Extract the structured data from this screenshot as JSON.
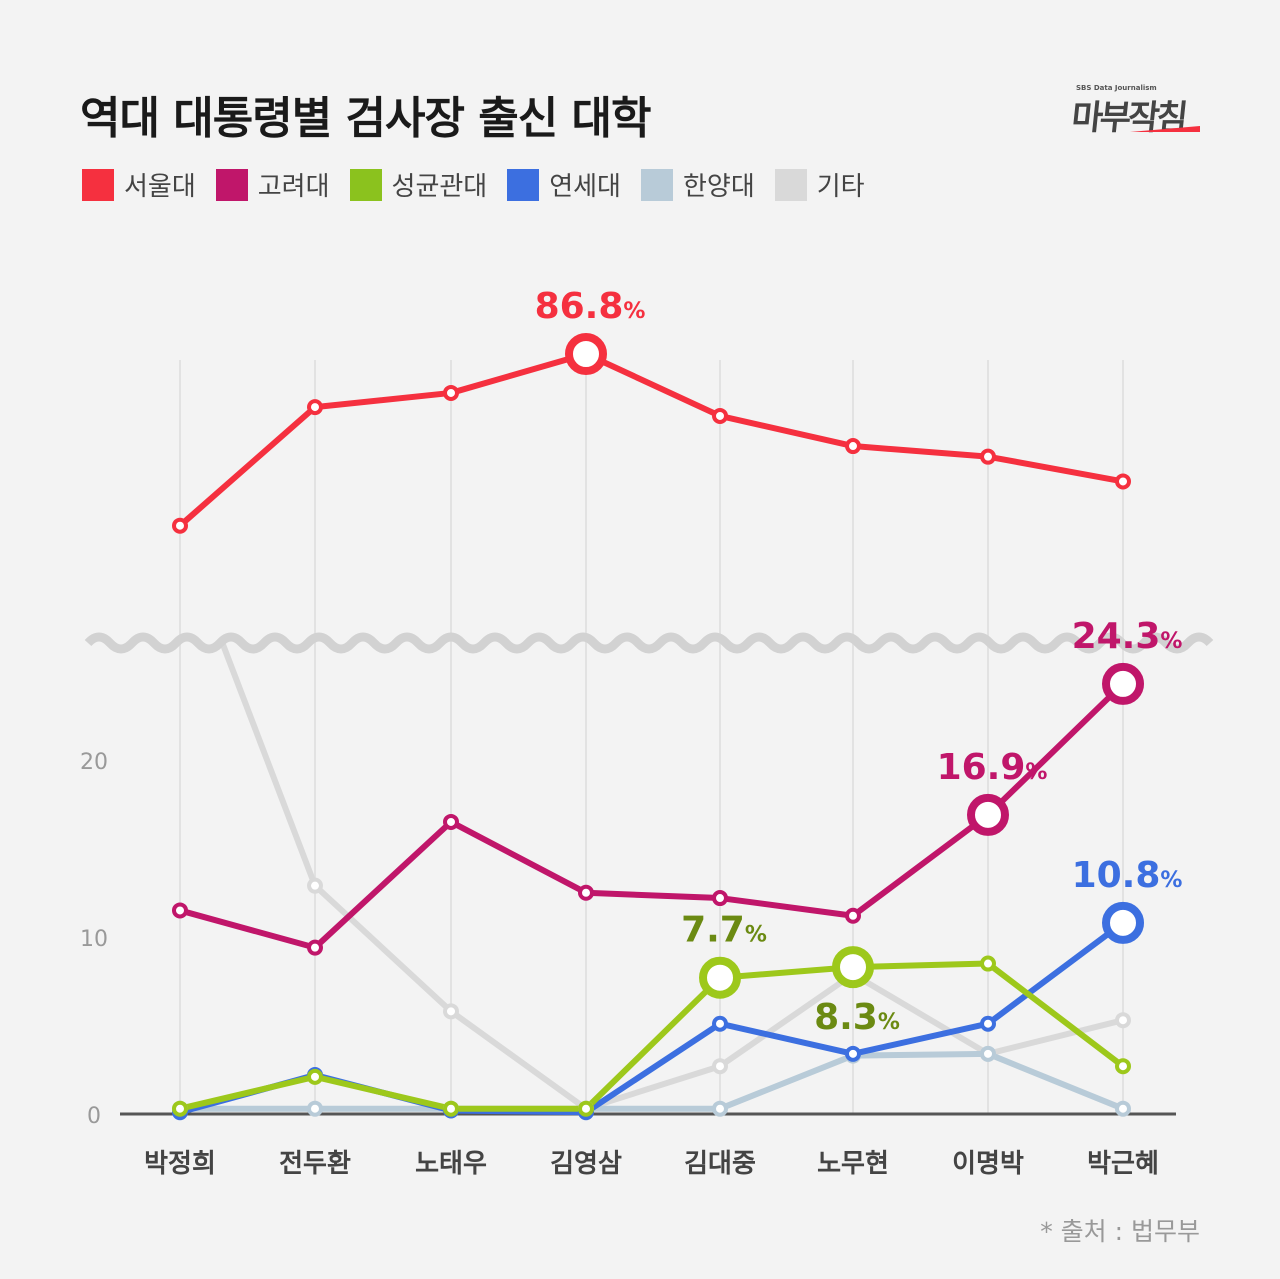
{
  "title": "역대 대통령별 검사장 출신 대학",
  "logo": {
    "small": "SBS Data Journalism",
    "big": "마부작침"
  },
  "source": "* 출처 : 법무부",
  "chart_data": {
    "type": "line",
    "title": "역대 대통령별 검사장 출신 대학",
    "categories": [
      "박정희",
      "전두환",
      "노태우",
      "김영삼",
      "김대중",
      "노무현",
      "이명박",
      "박근혜"
    ],
    "y_ticks": [
      "0",
      "10",
      "20"
    ],
    "ylim_lower": [
      0,
      25
    ],
    "axis_break": true,
    "grid": "vertical",
    "legend_position": "top-left",
    "unit": "%",
    "series": [
      {
        "name": "기타",
        "color": "#d9d9d9",
        "values": [
          null,
          12.9,
          5.8,
          0.3,
          2.7,
          7.9,
          3.4,
          5.3
        ]
      },
      {
        "name": "한양대",
        "color": "#b8cbd8",
        "values": [
          0.3,
          0.3,
          0.3,
          0.3,
          0.3,
          3.3,
          3.4,
          0.3
        ]
      },
      {
        "name": "연세대",
        "color": "#3c6fe0",
        "values": [
          0.1,
          2.2,
          0.2,
          0.1,
          5.1,
          3.4,
          5.1,
          10.8
        ]
      },
      {
        "name": "고려대",
        "color": "#c0166a",
        "values": [
          11.5,
          9.4,
          16.5,
          12.5,
          12.2,
          11.2,
          16.9,
          24.3
        ]
      },
      {
        "name": "성균관대",
        "color": "#9dc81b",
        "values": [
          0.3,
          2.1,
          0.3,
          0.3,
          7.7,
          8.3,
          8.5,
          2.7
        ]
      },
      {
        "name": "서울대",
        "color": "#f5303f",
        "values": [
          77.1,
          83.8,
          84.6,
          86.8,
          83.3,
          81.6,
          81.0,
          79.6
        ]
      }
    ],
    "annotations": [
      {
        "series": "서울대",
        "category": "김영삼",
        "label": "86.8",
        "unit": "%",
        "color": "#f5303f"
      },
      {
        "series": "고려대",
        "category": "이명박",
        "label": "16.9",
        "unit": "%",
        "color": "#c0166a"
      },
      {
        "series": "고려대",
        "category": "박근혜",
        "label": "24.3",
        "unit": "%",
        "color": "#c0166a"
      },
      {
        "series": "연세대",
        "category": "박근혜",
        "label": "10.8",
        "unit": "%",
        "color": "#3c6fe0"
      },
      {
        "series": "성균관대",
        "category": "김대중",
        "label": "7.7",
        "unit": "%",
        "color": "#6b8a12"
      },
      {
        "series": "성균관대",
        "category": "노무현",
        "label": "8.3",
        "unit": "%",
        "color": "#6b8a12"
      }
    ]
  }
}
